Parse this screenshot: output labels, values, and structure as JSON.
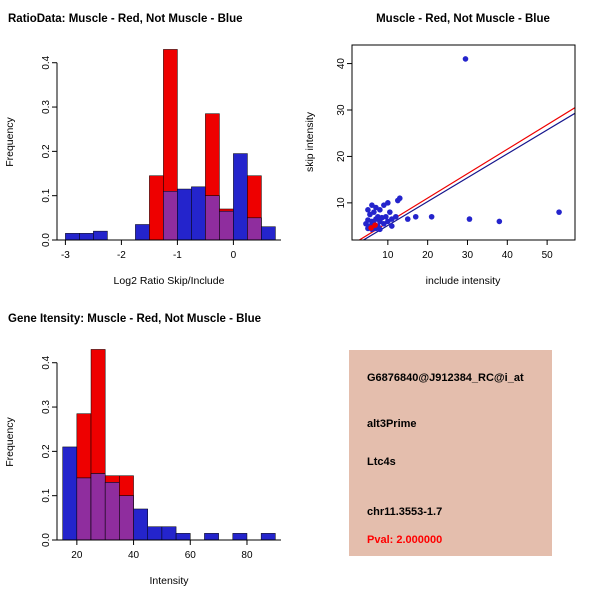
{
  "window": {
    "background": "#FFFFFF"
  },
  "panels": {
    "ratio_hist": {
      "title": "RatioData: Muscle - Red, Not Muscle - Blue",
      "xlabel": "Log2 Ratio Skip/Include",
      "ylabel": "Frequency"
    },
    "scatter": {
      "title": "Muscle - Red, Not Muscle - Blue",
      "xlabel": "include intensity",
      "ylabel": "skip intensity"
    },
    "gene_hist": {
      "title": "Gene Itensity: Muscle - Red, Not Muscle - Blue",
      "xlabel": "Intensity",
      "ylabel": "Frequency"
    },
    "info_box": {
      "background": "#E4BEAD",
      "lines": [
        {
          "text": "G6876840@J912384_RC@i_at",
          "color": "#000000"
        },
        {
          "text": "alt3Prime",
          "color": "#000000"
        },
        {
          "text": "Ltc4s",
          "color": "#000000"
        },
        {
          "text": "chr11.3553-1.7",
          "color": "#000000"
        },
        {
          "text": "Pval: 2.000000",
          "color": "#FF0000"
        }
      ]
    }
  },
  "chart_data": [
    {
      "id": "ratio_hist",
      "type": "bar",
      "subtype": "overlaid-histogram",
      "title": "RatioData: Muscle - Red, Not Muscle - Blue",
      "xlabel": "Log2 Ratio Skip/Include",
      "ylabel": "Frequency",
      "legend": {
        "Muscle": "red",
        "Not Muscle": "blue"
      },
      "grid": false,
      "bin_width": 0.25,
      "xlim": [
        -3.15,
        0.85
      ],
      "ylim": [
        0,
        0.44
      ],
      "xticks": [
        -3,
        -2,
        -1,
        0
      ],
      "xtick_labels": [
        "-3",
        "-2",
        "-1",
        "0"
      ],
      "yticks": [
        0,
        0.1,
        0.2,
        0.3,
        0.4
      ],
      "ytick_labels": [
        "0.0",
        "0.1",
        "0.2",
        "0.3",
        "0.4"
      ],
      "colors": {
        "red": "#EE0000",
        "blue": "#2424CC",
        "overlap": "#8F2D9E"
      },
      "bins": [
        {
          "x0": -3.0,
          "red": 0,
          "blue": 0.015
        },
        {
          "x0": -2.75,
          "red": 0,
          "blue": 0.015
        },
        {
          "x0": -2.5,
          "red": 0,
          "blue": 0.02
        },
        {
          "x0": -2.25,
          "red": 0,
          "blue": 0
        },
        {
          "x0": -2.0,
          "red": 0,
          "blue": 0
        },
        {
          "x0": -1.75,
          "red": 0,
          "blue": 0.035
        },
        {
          "x0": -1.5,
          "red": 0.145,
          "blue": 0
        },
        {
          "x0": -1.25,
          "red": 0.43,
          "blue": 0.11
        },
        {
          "x0": -1.0,
          "red": 0,
          "blue": 0.115
        },
        {
          "x0": -0.75,
          "red": 0,
          "blue": 0.12
        },
        {
          "x0": -0.5,
          "red": 0.285,
          "blue": 0.1
        },
        {
          "x0": -0.25,
          "red": 0.07,
          "blue": 0.065
        },
        {
          "x0": 0.0,
          "red": 0,
          "blue": 0.195
        },
        {
          "x0": 0.25,
          "red": 0.145,
          "blue": 0.05
        },
        {
          "x0": 0.5,
          "red": 0,
          "blue": 0.03
        }
      ]
    },
    {
      "id": "scatter",
      "type": "scatter",
      "title": "Muscle - Red, Not Muscle - Blue",
      "xlabel": "include intensity",
      "ylabel": "skip intensity",
      "grid": false,
      "xlim": [
        1,
        57
      ],
      "ylim": [
        2,
        44
      ],
      "xticks": [
        10,
        20,
        30,
        40,
        50
      ],
      "xtick_labels": [
        "10",
        "20",
        "30",
        "40",
        "50"
      ],
      "yticks": [
        10,
        20,
        30,
        40
      ],
      "ytick_labels": [
        "10",
        "20",
        "30",
        "40"
      ],
      "colors": {
        "red": "#EE0000",
        "blue": "#2424CC"
      },
      "points_blue": [
        [
          4.5,
          5.5
        ],
        [
          5,
          4.5
        ],
        [
          5,
          6.3
        ],
        [
          5,
          8.5
        ],
        [
          5.5,
          5
        ],
        [
          5.5,
          7.5
        ],
        [
          6,
          4.3
        ],
        [
          6,
          6
        ],
        [
          6,
          9.5
        ],
        [
          6.5,
          5.5
        ],
        [
          6.5,
          8
        ],
        [
          7,
          4.5
        ],
        [
          7,
          6.5
        ],
        [
          7,
          9
        ],
        [
          7.5,
          5
        ],
        [
          7.5,
          7
        ],
        [
          8,
          4.3
        ],
        [
          8,
          6
        ],
        [
          8,
          8.5
        ],
        [
          8.5,
          6.8
        ],
        [
          9,
          5.5
        ],
        [
          9,
          9.5
        ],
        [
          9.5,
          7
        ],
        [
          10,
          6
        ],
        [
          10,
          10
        ],
        [
          10.5,
          8
        ],
        [
          11,
          6.5
        ],
        [
          11,
          5
        ],
        [
          12,
          7
        ],
        [
          12.5,
          10.5
        ],
        [
          13,
          11
        ],
        [
          15,
          6.5
        ],
        [
          17,
          7
        ],
        [
          21,
          7
        ],
        [
          29.5,
          41
        ],
        [
          30.5,
          6.5
        ],
        [
          38,
          6
        ],
        [
          53,
          8
        ]
      ],
      "points_red": [
        [
          5.8,
          4.6
        ],
        [
          6.8,
          5.2
        ]
      ],
      "lines": [
        {
          "x1": 0,
          "y1": 0.5,
          "x2": 57,
          "y2": 30.5,
          "color": "#EE0000"
        },
        {
          "x1": 0,
          "y1": 0.0,
          "x2": 57,
          "y2": 29.3,
          "color": "#15158C"
        }
      ]
    },
    {
      "id": "gene_hist",
      "type": "bar",
      "subtype": "overlaid-histogram",
      "title": "Gene Itensity: Muscle - Red, Not Muscle - Blue",
      "xlabel": "Intensity",
      "ylabel": "Frequency",
      "legend": {
        "Muscle": "red",
        "Not Muscle": "blue"
      },
      "grid": false,
      "bin_width": 5,
      "xlim": [
        13,
        92
      ],
      "ylim": [
        0,
        0.44
      ],
      "xticks": [
        20,
        40,
        60,
        80
      ],
      "xtick_labels": [
        "20",
        "40",
        "60",
        "80"
      ],
      "yticks": [
        0,
        0.1,
        0.2,
        0.3,
        0.4
      ],
      "ytick_labels": [
        "0.0",
        "0.1",
        "0.2",
        "0.3",
        "0.4"
      ],
      "colors": {
        "red": "#EE0000",
        "blue": "#2424CC",
        "overlap": "#8F2D9E"
      },
      "bins": [
        {
          "x0": 15,
          "red": 0,
          "blue": 0.21
        },
        {
          "x0": 20,
          "red": 0.285,
          "blue": 0.14
        },
        {
          "x0": 25,
          "red": 0.43,
          "blue": 0.15
        },
        {
          "x0": 30,
          "red": 0.145,
          "blue": 0.13
        },
        {
          "x0": 35,
          "red": 0.145,
          "blue": 0.1
        },
        {
          "x0": 40,
          "red": 0,
          "blue": 0.07
        },
        {
          "x0": 45,
          "red": 0,
          "blue": 0.03
        },
        {
          "x0": 50,
          "red": 0,
          "blue": 0.03
        },
        {
          "x0": 55,
          "red": 0,
          "blue": 0.015
        },
        {
          "x0": 60,
          "red": 0,
          "blue": 0
        },
        {
          "x0": 65,
          "red": 0,
          "blue": 0.015
        },
        {
          "x0": 70,
          "red": 0,
          "blue": 0
        },
        {
          "x0": 75,
          "red": 0,
          "blue": 0.015
        },
        {
          "x0": 80,
          "red": 0,
          "blue": 0
        },
        {
          "x0": 85,
          "red": 0,
          "blue": 0.015
        }
      ]
    }
  ]
}
